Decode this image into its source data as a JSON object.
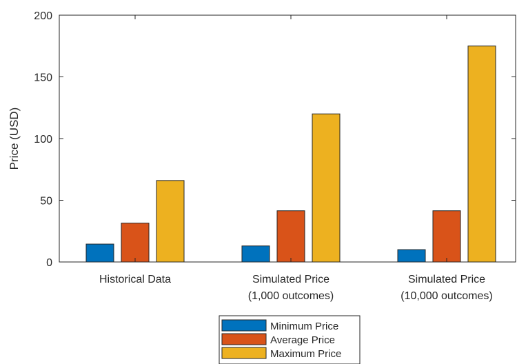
{
  "chart_data": {
    "type": "bar",
    "categories": [
      [
        "Historical Data"
      ],
      [
        "Simulated Price",
        "(1,000 outcomes)"
      ],
      [
        "Simulated Price",
        "(10,000 outcomes)"
      ]
    ],
    "series": [
      {
        "name": "Minimum Price",
        "color": "#0072BD",
        "values": [
          14.5,
          13,
          10
        ]
      },
      {
        "name": "Average Price",
        "color": "#D95319",
        "values": [
          31.5,
          41.5,
          41.5
        ]
      },
      {
        "name": "Maximum Price",
        "color": "#EDB120",
        "values": [
          66,
          120,
          175
        ]
      }
    ],
    "ylabel": "Price (USD)",
    "ylim": [
      0,
      200
    ],
    "yticks": [
      0,
      50,
      100,
      150,
      200
    ],
    "grid": false,
    "legend_position": "bottom-center"
  }
}
